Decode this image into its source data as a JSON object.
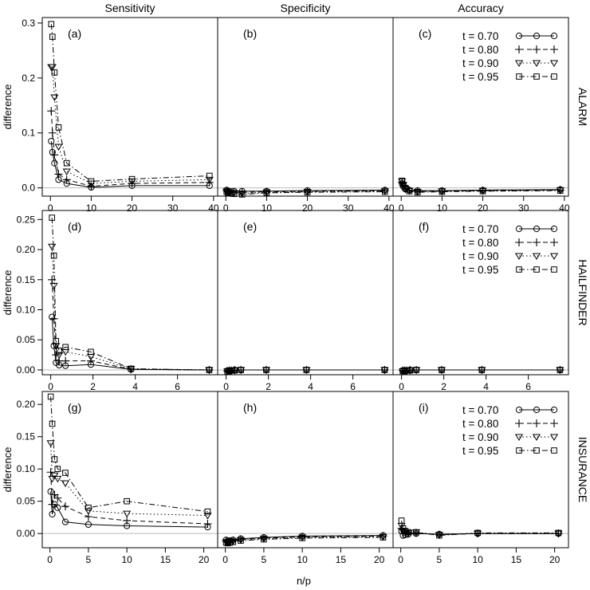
{
  "chart_data": {
    "type": "line",
    "column_titles": [
      "Sensitivity",
      "Specificity",
      "Accuracy"
    ],
    "row_titles": [
      "ALARM",
      "HAILFINDER",
      "INSURANCE"
    ],
    "xlabel": "n/p",
    "ylabel": "difference",
    "legend": {
      "placement": "top-right of right column",
      "entries": [
        {
          "label": "t = 0.70",
          "marker": "circle",
          "dash": "solid"
        },
        {
          "label": "t = 0.80",
          "marker": "plus",
          "dash": "dashed"
        },
        {
          "label": "t = 0.90",
          "marker": "triangle-down",
          "dash": "dotted"
        },
        {
          "label": "t = 0.95",
          "marker": "square",
          "dash": "dash-dot"
        }
      ]
    },
    "rows": [
      {
        "name": "ALARM",
        "x": [
          0.2,
          0.5,
          1,
          2,
          4,
          10,
          20,
          39
        ],
        "xlim": [
          -2,
          41
        ],
        "xticks": [
          0,
          10,
          20,
          30,
          40
        ],
        "ylim": [
          -0.015,
          0.31
        ],
        "yticks": [
          0.0,
          0.1,
          0.2,
          0.3
        ],
        "ytick_labels": [
          "0.0",
          "0.1",
          "0.2",
          "0.3"
        ],
        "panels": [
          {
            "label": "(a)",
            "series": [
              {
                "name": "t = 0.70",
                "values": [
                  0.085,
                  0.065,
                  0.045,
                  0.015,
                  0.008,
                  0.001,
                  0.004,
                  0.004
                ]
              },
              {
                "name": "t = 0.80",
                "values": [
                  0.14,
                  0.1,
                  0.06,
                  0.025,
                  0.015,
                  0.003,
                  0.008,
                  0.01
                ]
              },
              {
                "name": "t = 0.90",
                "values": [
                  0.22,
                  0.22,
                  0.165,
                  0.075,
                  0.03,
                  0.008,
                  0.012,
                  0.015
                ]
              },
              {
                "name": "t = 0.95",
                "values": [
                  0.298,
                  0.275,
                  0.21,
                  0.11,
                  0.045,
                  0.012,
                  0.016,
                  0.022
                ]
              }
            ]
          },
          {
            "label": "(b)",
            "series": [
              {
                "name": "t = 0.70",
                "values": [
                  -0.004,
                  -0.006,
                  -0.006,
                  -0.006,
                  -0.006,
                  -0.006,
                  -0.005,
                  -0.004
                ]
              },
              {
                "name": "t = 0.80",
                "values": [
                  -0.005,
                  -0.007,
                  -0.008,
                  -0.008,
                  -0.008,
                  -0.007,
                  -0.006,
                  -0.005
                ]
              },
              {
                "name": "t = 0.90",
                "values": [
                  -0.006,
                  -0.008,
                  -0.009,
                  -0.009,
                  -0.01,
                  -0.008,
                  -0.007,
                  -0.006
                ]
              },
              {
                "name": "t = 0.95",
                "values": [
                  -0.007,
                  -0.009,
                  -0.01,
                  -0.011,
                  -0.012,
                  -0.009,
                  -0.008,
                  -0.007
                ]
              }
            ]
          },
          {
            "label": "(c)",
            "series": [
              {
                "name": "t = 0.70",
                "values": [
                  0.008,
                  0.003,
                  -0.002,
                  -0.004,
                  -0.005,
                  -0.005,
                  -0.004,
                  -0.003
                ]
              },
              {
                "name": "t = 0.80",
                "values": [
                  0.01,
                  0.004,
                  -0.002,
                  -0.005,
                  -0.006,
                  -0.006,
                  -0.005,
                  -0.004
                ]
              },
              {
                "name": "t = 0.90",
                "values": [
                  0.012,
                  0.005,
                  -0.001,
                  -0.005,
                  -0.007,
                  -0.006,
                  -0.005,
                  -0.004
                ]
              },
              {
                "name": "t = 0.95",
                "values": [
                  0.013,
                  0.006,
                  0.0,
                  -0.006,
                  -0.008,
                  -0.007,
                  -0.006,
                  -0.005
                ]
              }
            ]
          }
        ]
      },
      {
        "name": "HAILFINDER",
        "x": [
          0.06,
          0.15,
          0.25,
          0.4,
          0.7,
          1.9,
          3.8,
          7.5
        ],
        "xlim": [
          -0.4,
          7.9
        ],
        "xticks": [
          0,
          2,
          4,
          6
        ],
        "ylim": [
          -0.008,
          0.265
        ],
        "yticks": [
          0.0,
          0.05,
          0.1,
          0.15,
          0.2,
          0.25
        ],
        "ytick_labels": [
          "0.00",
          "0.05",
          "0.10",
          "0.15",
          "0.20",
          "0.25"
        ],
        "panels": [
          {
            "label": "(d)",
            "series": [
              {
                "name": "t = 0.70",
                "values": [
                  0.088,
                  0.04,
                  0.012,
                  0.008,
                  0.007,
                  0.009,
                  0.001,
                  0.0
                ]
              },
              {
                "name": "t = 0.80",
                "values": [
                  0.15,
                  0.085,
                  0.025,
                  0.015,
                  0.015,
                  0.015,
                  0.001,
                  0.0
                ]
              },
              {
                "name": "t = 0.90",
                "values": [
                  0.205,
                  0.14,
                  0.04,
                  0.025,
                  0.03,
                  0.022,
                  0.002,
                  0.0
                ]
              },
              {
                "name": "t = 0.95",
                "values": [
                  0.253,
                  0.19,
                  0.048,
                  0.032,
                  0.038,
                  0.03,
                  0.002,
                  0.0
                ]
              }
            ]
          },
          {
            "label": "(e)",
            "series": [
              {
                "name": "t = 0.70",
                "values": [
                  -0.001,
                  -0.001,
                  -0.001,
                  0.0,
                  0.0,
                  0.0,
                  0.0,
                  0.0
                ]
              },
              {
                "name": "t = 0.80",
                "values": [
                  -0.002,
                  -0.001,
                  -0.001,
                  0.0,
                  0.0,
                  0.0,
                  0.0,
                  0.0
                ]
              },
              {
                "name": "t = 0.90",
                "values": [
                  -0.002,
                  -0.002,
                  -0.001,
                  -0.001,
                  0.0,
                  0.0,
                  0.0,
                  0.0
                ]
              },
              {
                "name": "t = 0.95",
                "values": [
                  -0.003,
                  -0.002,
                  -0.001,
                  -0.001,
                  0.0,
                  0.0,
                  0.0,
                  0.0
                ]
              }
            ]
          },
          {
            "label": "(f)",
            "series": [
              {
                "name": "t = 0.70",
                "values": [
                  -0.001,
                  -0.001,
                  -0.001,
                  0.0,
                  0.0,
                  0.0,
                  0.0,
                  0.0
                ]
              },
              {
                "name": "t = 0.80",
                "values": [
                  -0.001,
                  -0.001,
                  -0.001,
                  0.0,
                  0.0,
                  0.0,
                  0.0,
                  0.0
                ]
              },
              {
                "name": "t = 0.90",
                "values": [
                  -0.002,
                  -0.001,
                  -0.001,
                  -0.001,
                  0.0,
                  0.0,
                  0.0,
                  0.0
                ]
              },
              {
                "name": "t = 0.95",
                "values": [
                  -0.002,
                  -0.002,
                  -0.001,
                  -0.001,
                  0.0,
                  0.0,
                  0.0,
                  0.0
                ]
              }
            ]
          }
        ]
      },
      {
        "name": "INSURANCE",
        "x": [
          0.1,
          0.3,
          0.6,
          1.0,
          2.0,
          5.0,
          10.0,
          20.5
        ],
        "xlim": [
          -1.0,
          21.8
        ],
        "xticks": [
          0,
          5,
          10,
          15,
          20
        ],
        "ylim": [
          -0.022,
          0.22
        ],
        "yticks": [
          0.0,
          0.05,
          0.1,
          0.15,
          0.2
        ],
        "ytick_labels": [
          "0.00",
          "0.05",
          "0.10",
          "0.15",
          "0.20"
        ],
        "panels": [
          {
            "label": "(g)",
            "series": [
              {
                "name": "t = 0.70",
                "values": [
                  0.065,
                  0.03,
                  0.045,
                  0.04,
                  0.018,
                  0.014,
                  0.012,
                  0.01
                ]
              },
              {
                "name": "t = 0.80",
                "values": [
                  0.095,
                  0.045,
                  0.06,
                  0.055,
                  0.042,
                  0.026,
                  0.02,
                  0.015
                ]
              },
              {
                "name": "t = 0.90",
                "values": [
                  0.14,
                  0.085,
                  0.09,
                  0.085,
                  0.078,
                  0.035,
                  0.031,
                  0.028
                ]
              },
              {
                "name": "t = 0.95",
                "values": [
                  0.212,
                  0.17,
                  0.115,
                  0.1,
                  0.094,
                  0.04,
                  0.05,
                  0.034
                ]
              }
            ]
          },
          {
            "label": "(h)",
            "series": [
              {
                "name": "t = 0.70",
                "values": [
                  -0.01,
                  -0.012,
                  -0.011,
                  -0.01,
                  -0.008,
                  -0.006,
                  -0.004,
                  -0.003
                ]
              },
              {
                "name": "t = 0.80",
                "values": [
                  -0.012,
                  -0.013,
                  -0.012,
                  -0.011,
                  -0.009,
                  -0.007,
                  -0.005,
                  -0.004
                ]
              },
              {
                "name": "t = 0.90",
                "values": [
                  -0.013,
                  -0.014,
                  -0.013,
                  -0.012,
                  -0.01,
                  -0.008,
                  -0.006,
                  -0.005
                ]
              },
              {
                "name": "t = 0.95",
                "values": [
                  -0.014,
                  -0.015,
                  -0.014,
                  -0.013,
                  -0.011,
                  -0.009,
                  -0.007,
                  -0.006
                ]
              }
            ]
          },
          {
            "label": "(i)",
            "series": [
              {
                "name": "t = 0.70",
                "values": [
                  0.004,
                  -0.003,
                  -0.002,
                  -0.001,
                  0.0,
                  -0.001,
                  0.0,
                  0.0
                ]
              },
              {
                "name": "t = 0.80",
                "values": [
                  0.008,
                  0.0,
                  0.001,
                  0.0,
                  0.001,
                  -0.002,
                  0.0,
                  0.0
                ]
              },
              {
                "name": "t = 0.90",
                "values": [
                  0.012,
                  0.003,
                  0.002,
                  0.001,
                  0.002,
                  -0.002,
                  0.0,
                  0.0
                ]
              },
              {
                "name": "t = 0.95",
                "values": [
                  0.02,
                  0.008,
                  0.004,
                  0.002,
                  0.002,
                  -0.003,
                  0.001,
                  0.001
                ]
              }
            ]
          }
        ]
      }
    ]
  }
}
